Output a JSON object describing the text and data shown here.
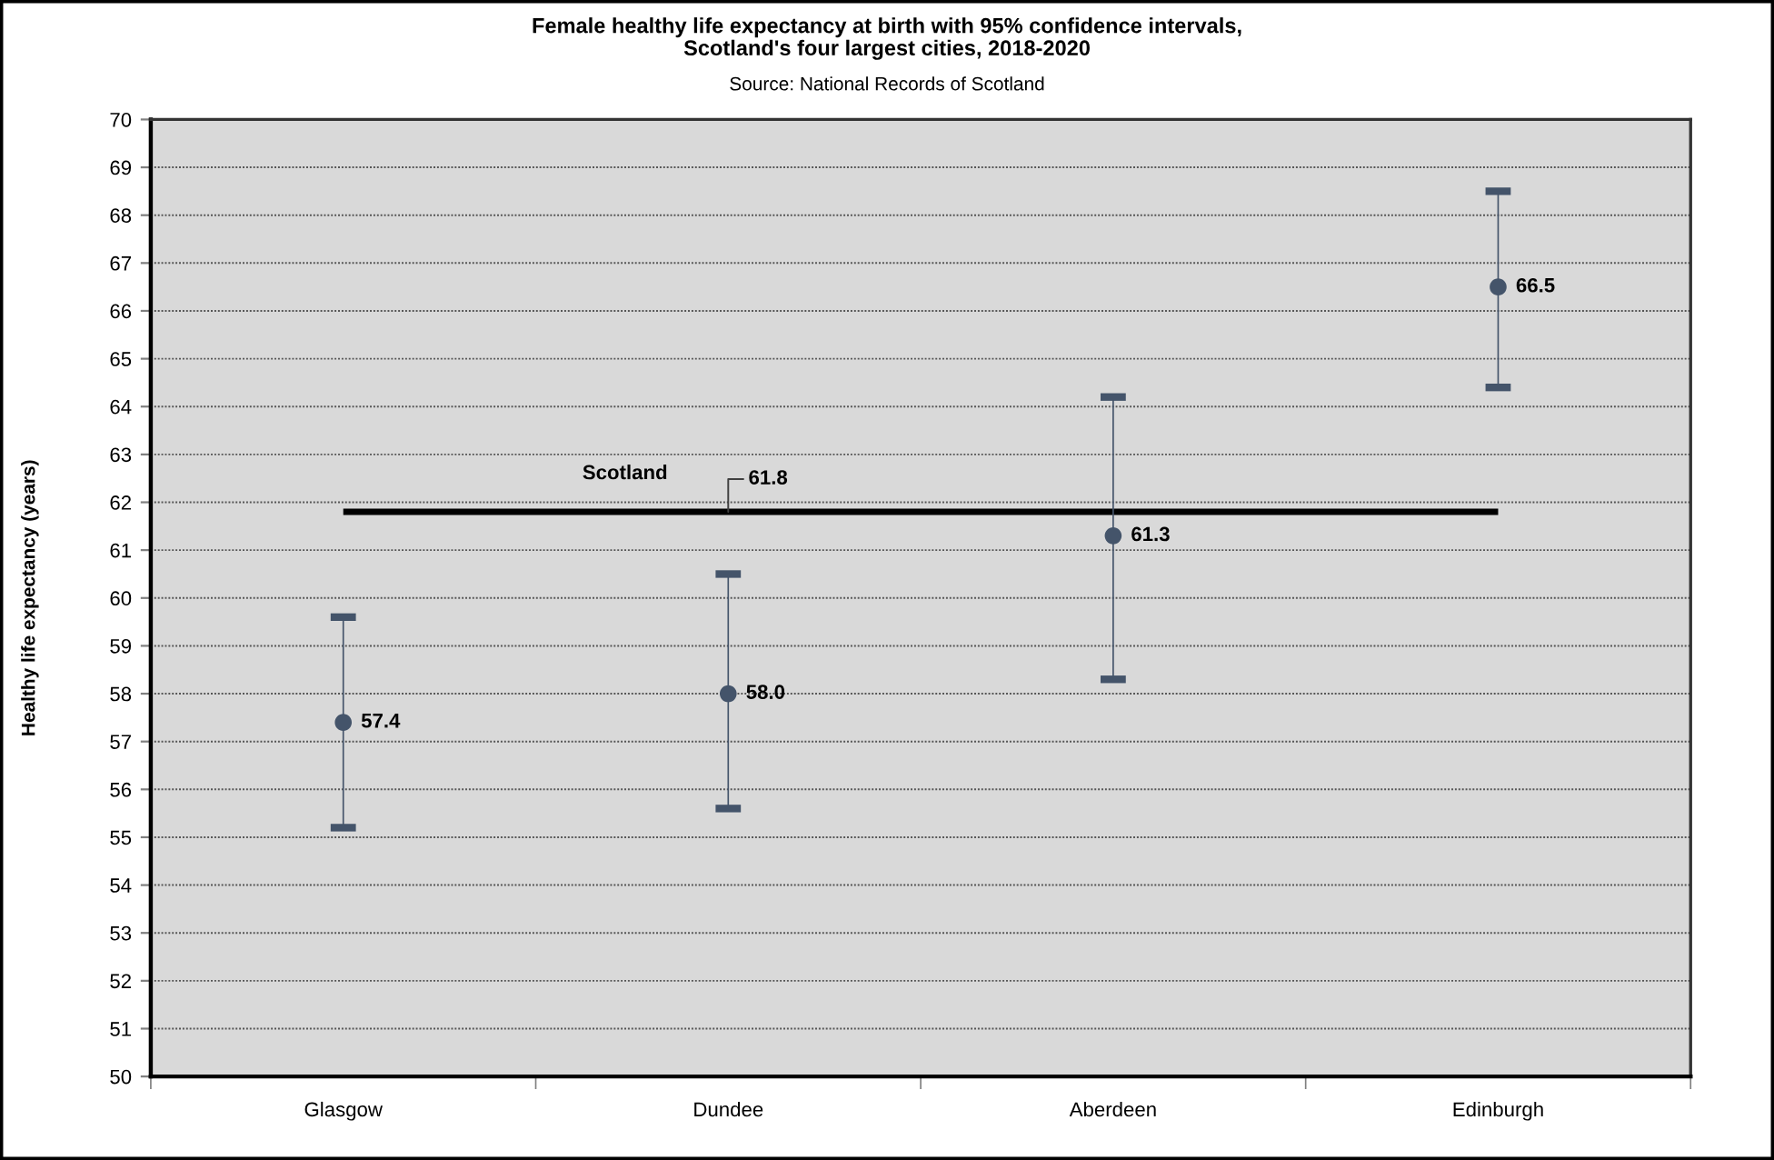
{
  "chart_data": {
    "type": "scatter",
    "title": "Female healthy life expectancy at birth with 95% confidence intervals,\nScotland's four largest cities, 2018-2020",
    "subtitle": "Source: National Records of Scotland",
    "ylabel": "Healthy life expectancy (years)",
    "categories": [
      "Glasgow",
      "Dundee",
      "Aberdeen",
      "Edinburgh"
    ],
    "series": [
      {
        "color": "#44546a",
        "marker": "circle",
        "values": [
          57.4,
          58.0,
          61.3,
          66.5
        ],
        "errors": [
          [
            55.2,
            59.6
          ],
          [
            55.6,
            60.5
          ],
          [
            58.3,
            64.2
          ],
          [
            64.4,
            68.5
          ]
        ],
        "value_labels": [
          "57.4",
          "58.0",
          "61.3",
          "66.5"
        ]
      },
      {
        "type": "line",
        "name": "Scotland",
        "color": "#000000",
        "values": [
          61.8,
          61.8,
          61.8,
          61.8
        ],
        "value_labels": [
          null,
          "61.8",
          null,
          null
        ]
      }
    ],
    "ylim": [
      50,
      70
    ],
    "yticks": [
      50,
      51,
      52,
      53,
      54,
      55,
      56,
      57,
      58,
      59,
      60,
      61,
      62,
      63,
      64,
      65,
      66,
      67,
      68,
      69,
      70
    ],
    "grid": "y"
  }
}
